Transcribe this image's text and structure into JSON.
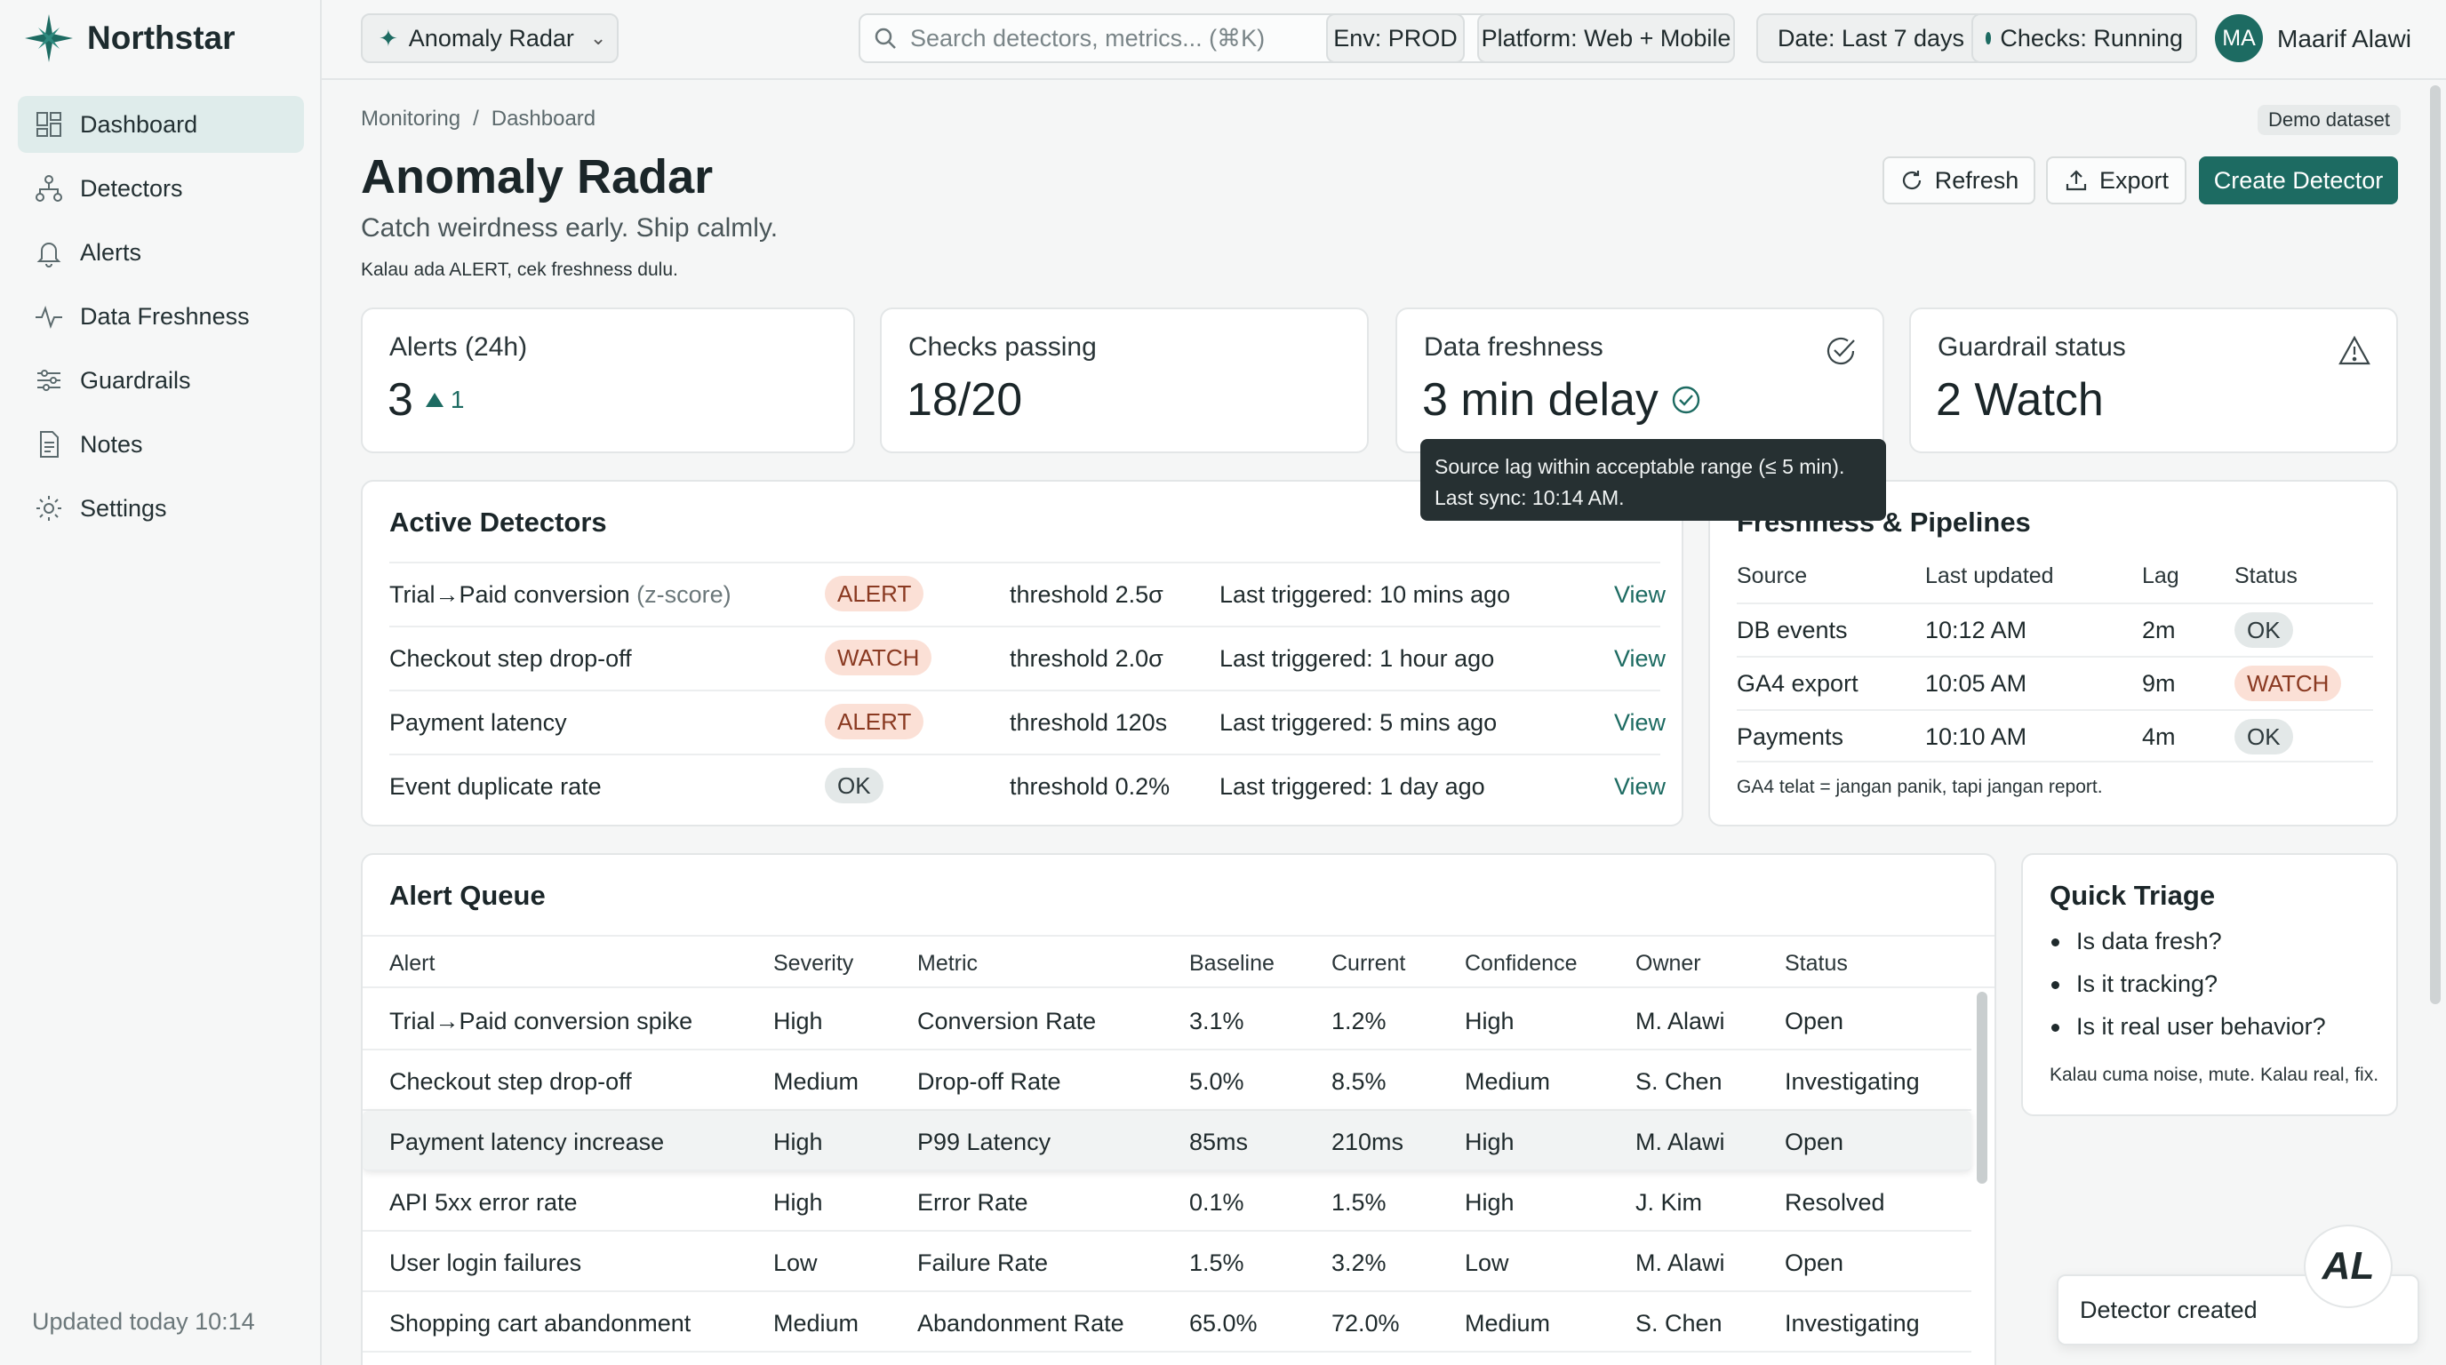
{
  "brand": {
    "name": "Northstar",
    "icon": "north-star-icon"
  },
  "sidebar": {
    "items": [
      {
        "label": "Dashboard",
        "icon": "dashboard-icon",
        "active": true
      },
      {
        "label": "Detectors",
        "icon": "hierarchy-icon"
      },
      {
        "label": "Alerts",
        "icon": "bell-icon"
      },
      {
        "label": "Data Freshness",
        "icon": "pulse-icon"
      },
      {
        "label": "Guardrails",
        "icon": "sliders-icon"
      },
      {
        "label": "Notes",
        "icon": "document-icon"
      },
      {
        "label": "Settings",
        "icon": "gear-icon"
      }
    ],
    "footer": "Updated today 10:14"
  },
  "topbar": {
    "app_switcher": "Anomaly Radar",
    "search_placeholder": "Search detectors, metrics... (⌘K)",
    "env": "Env: PROD",
    "platform": "Platform: Web + Mobile",
    "date": "Date: Last 7 days",
    "checks": "Checks: Running",
    "user_initials": "MA",
    "user_name": "Maarif Alawi"
  },
  "header": {
    "breadcrumb": [
      "Monitoring",
      "Dashboard"
    ],
    "demo_badge": "Demo dataset",
    "title": "Anomaly Radar",
    "subtitle": "Catch weirdness early. Ship calmly.",
    "note": "Kalau ada ALERT, cek freshness dulu.",
    "buttons": {
      "refresh": "Refresh",
      "export": "Export",
      "create": "Create Detector"
    }
  },
  "kpis": {
    "alerts": {
      "label": "Alerts (24h)",
      "value": "3",
      "delta": "1"
    },
    "checks": {
      "label": "Checks passing",
      "value": "18/20"
    },
    "freshness": {
      "label": "Data freshness",
      "value": "3 min delay"
    },
    "guardrail": {
      "label": "Guardrail status",
      "value": "2 Watch"
    }
  },
  "tooltip": {
    "line1": "Source lag within acceptable range (≤ 5 min).",
    "line2": "Last sync: 10:14 AM."
  },
  "detectors": {
    "title": "Active Detectors",
    "rows": [
      {
        "name": "Trial→Paid conversion",
        "method": "(z-score)",
        "status": "ALERT",
        "threshold": "threshold 2.5σ",
        "last": "Last triggered: 10 mins ago",
        "action": "View"
      },
      {
        "name": "Checkout step drop-off",
        "method": "",
        "status": "WATCH",
        "threshold": "threshold 2.0σ",
        "last": "Last triggered: 1 hour ago",
        "action": "View"
      },
      {
        "name": "Payment latency",
        "method": "",
        "status": "ALERT",
        "threshold": "threshold 120s",
        "last": "Last triggered: 5 mins ago",
        "action": "View"
      },
      {
        "name": "Event duplicate rate",
        "method": "",
        "status": "OK",
        "threshold": "threshold 0.2%",
        "last": "Last triggered: 1 day ago",
        "action": "View"
      }
    ]
  },
  "pipelines": {
    "title": "Freshness & Pipelines",
    "headers": [
      "Source",
      "Last updated",
      "Lag",
      "Status"
    ],
    "rows": [
      {
        "source": "DB events",
        "updated": "10:12 AM",
        "lag": "2m",
        "status": "OK"
      },
      {
        "source": "GA4 export",
        "updated": "10:05 AM",
        "lag": "9m",
        "status": "WATCH"
      },
      {
        "source": "Payments",
        "updated": "10:10 AM",
        "lag": "4m",
        "status": "OK"
      }
    ],
    "note": "GA4 telat = jangan panik, tapi jangan report."
  },
  "queue": {
    "title": "Alert Queue",
    "headers": [
      "Alert",
      "Severity",
      "Metric",
      "Baseline",
      "Current",
      "Confidence",
      "Owner",
      "Status"
    ],
    "rows": [
      {
        "alert": "Trial→Paid conversion spike",
        "severity": "High",
        "metric": "Conversion Rate",
        "baseline": "3.1%",
        "current": "1.2%",
        "confidence": "High",
        "owner": "M. Alawi",
        "status": "Open"
      },
      {
        "alert": "Checkout step drop-off",
        "severity": "Medium",
        "metric": "Drop-off Rate",
        "baseline": "5.0%",
        "current": "8.5%",
        "confidence": "Medium",
        "owner": "S. Chen",
        "status": "Investigating"
      },
      {
        "alert": "Payment latency increase",
        "severity": "High",
        "metric": "P99 Latency",
        "baseline": "85ms",
        "current": "210ms",
        "confidence": "High",
        "owner": "M. Alawi",
        "status": "Open"
      },
      {
        "alert": "API 5xx error rate",
        "severity": "High",
        "metric": "Error Rate",
        "baseline": "0.1%",
        "current": "1.5%",
        "confidence": "High",
        "owner": "J. Kim",
        "status": "Resolved"
      },
      {
        "alert": "User login failures",
        "severity": "Low",
        "metric": "Failure Rate",
        "baseline": "1.5%",
        "current": "3.2%",
        "confidence": "Low",
        "owner": "M. Alawi",
        "status": "Open"
      },
      {
        "alert": "Shopping cart abandonment",
        "severity": "Medium",
        "metric": "Abandonment Rate",
        "baseline": "65.0%",
        "current": "72.0%",
        "confidence": "Medium",
        "owner": "S. Chen",
        "status": "Investigating"
      }
    ]
  },
  "triage": {
    "title": "Quick Triage",
    "items": [
      "Is data fresh?",
      "Is it tracking?",
      "Is it real user behavior?"
    ],
    "note": "Kalau cuma noise, mute. Kalau real, fix."
  },
  "toast": "Detector created",
  "assistant_initials": "AL",
  "colors": {
    "accent": "#1d6b62",
    "alert_bg": "#fbe0d6",
    "ok_bg": "#e3e8e8"
  }
}
